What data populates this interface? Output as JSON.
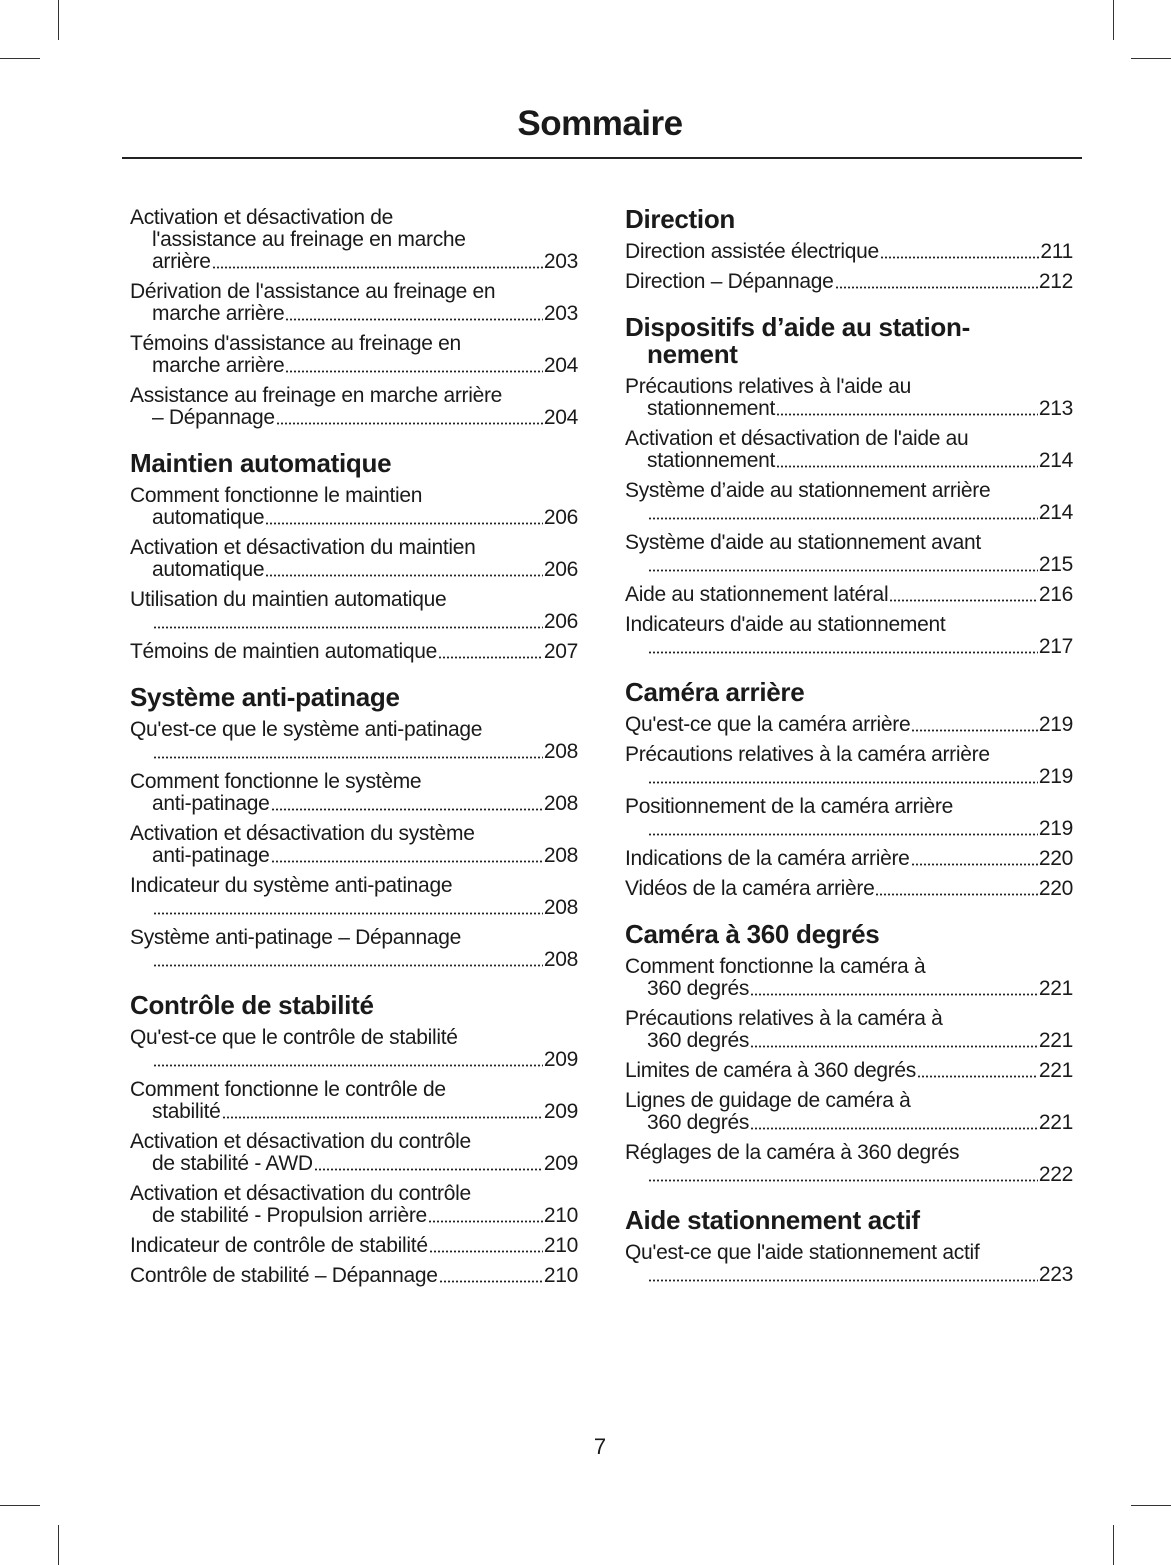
{
  "title": "Sommaire",
  "page_number": "7",
  "columns": [
    {
      "sections": [
        {
          "heading": null,
          "entries": [
            {
              "lines": [
                "Activation et désactivation de",
                "l'assistance au freinage en marche",
                "arrière"
              ],
              "page": "203"
            },
            {
              "lines": [
                "Dérivation de l'assistance au freinage en",
                "marche arrière"
              ],
              "page": "203"
            },
            {
              "lines": [
                "Témoins d'assistance au freinage en",
                "marche arrière"
              ],
              "page": "204"
            },
            {
              "lines": [
                "Assistance au freinage en marche arrière",
                "– Dépannage"
              ],
              "page": "204"
            }
          ]
        },
        {
          "heading": [
            "Maintien automatique"
          ],
          "entries": [
            {
              "lines": [
                "Comment fonctionne le maintien",
                "automatique"
              ],
              "page": "206"
            },
            {
              "lines": [
                "Activation et désactivation du maintien",
                "automatique"
              ],
              "page": "206"
            },
            {
              "lines": [
                "Utilisation du maintien automatique",
                ""
              ],
              "page": "206"
            },
            {
              "lines": [
                "Témoins de maintien automatique"
              ],
              "page": "207"
            }
          ]
        },
        {
          "heading": [
            "Système anti-patinage"
          ],
          "entries": [
            {
              "lines": [
                "Qu'est-ce que le système anti-patinage",
                ""
              ],
              "page": "208"
            },
            {
              "lines": [
                "Comment fonctionne le système",
                "anti-patinage"
              ],
              "page": "208"
            },
            {
              "lines": [
                "Activation et désactivation du système",
                "anti-patinage"
              ],
              "page": "208"
            },
            {
              "lines": [
                "Indicateur du système anti-patinage",
                ""
              ],
              "page": "208"
            },
            {
              "lines": [
                "Système anti-patinage – Dépannage",
                ""
              ],
              "page": "208"
            }
          ]
        },
        {
          "heading": [
            "Contrôle de stabilité"
          ],
          "entries": [
            {
              "lines": [
                "Qu'est-ce que le contrôle de stabilité",
                ""
              ],
              "page": "209"
            },
            {
              "lines": [
                "Comment fonctionne le contrôle de",
                "stabilité"
              ],
              "page": "209"
            },
            {
              "lines": [
                "Activation et désactivation du contrôle",
                "de stabilité - AWD"
              ],
              "page": "209"
            },
            {
              "lines": [
                "Activation et désactivation du contrôle",
                "de stabilité - Propulsion arrière"
              ],
              "page": "210"
            },
            {
              "lines": [
                "Indicateur de contrôle de stabilité"
              ],
              "page": "210"
            },
            {
              "lines": [
                "Contrôle de stabilité – Dépannage"
              ],
              "page": "210"
            }
          ]
        }
      ]
    },
    {
      "sections": [
        {
          "heading": [
            "Direction"
          ],
          "entries": [
            {
              "lines": [
                "Direction assistée électrique"
              ],
              "page": "211"
            },
            {
              "lines": [
                "Direction – Dépannage"
              ],
              "page": "212"
            }
          ]
        },
        {
          "heading": [
            "Dispositifs d’aide au station-",
            "nement"
          ],
          "entries": [
            {
              "lines": [
                "Précautions relatives à l'aide au",
                "stationnement"
              ],
              "page": "213"
            },
            {
              "lines": [
                "Activation et désactivation de l'aide au",
                "stationnement"
              ],
              "page": "214"
            },
            {
              "lines": [
                "Système d’aide au stationnement arrière",
                ""
              ],
              "page": "214"
            },
            {
              "lines": [
                "Système d'aide au stationnement avant",
                ""
              ],
              "page": "215"
            },
            {
              "lines": [
                "Aide au stationnement latéral"
              ],
              "page": "216"
            },
            {
              "lines": [
                "Indicateurs d'aide au stationnement",
                ""
              ],
              "page": "217"
            }
          ]
        },
        {
          "heading": [
            "Caméra arrière"
          ],
          "entries": [
            {
              "lines": [
                "Qu'est-ce que la caméra arrière"
              ],
              "page": "219"
            },
            {
              "lines": [
                "Précautions relatives à la caméra arrière",
                ""
              ],
              "page": "219"
            },
            {
              "lines": [
                "Positionnement de la caméra arrière",
                ""
              ],
              "page": "219"
            },
            {
              "lines": [
                "Indications de la caméra arrière"
              ],
              "page": "220"
            },
            {
              "lines": [
                "Vidéos de la caméra arrière"
              ],
              "page": "220"
            }
          ]
        },
        {
          "heading": [
            "Caméra à 360 degrés"
          ],
          "entries": [
            {
              "lines": [
                "Comment fonctionne la caméra à",
                "360 degrés"
              ],
              "page": "221"
            },
            {
              "lines": [
                "Précautions relatives à la caméra à",
                "360 degrés"
              ],
              "page": "221"
            },
            {
              "lines": [
                "Limites de caméra à 360 degrés"
              ],
              "page": "221"
            },
            {
              "lines": [
                "Lignes de guidage de caméra à",
                "360 degrés"
              ],
              "page": "221"
            },
            {
              "lines": [
                "Réglages de la caméra à 360 degrés",
                ""
              ],
              "page": "222"
            }
          ]
        },
        {
          "heading": [
            "Aide stationnement actif"
          ],
          "entries": [
            {
              "lines": [
                "Qu'est-ce que l'aide stationnement actif",
                ""
              ],
              "page": "223"
            }
          ]
        }
      ]
    }
  ]
}
